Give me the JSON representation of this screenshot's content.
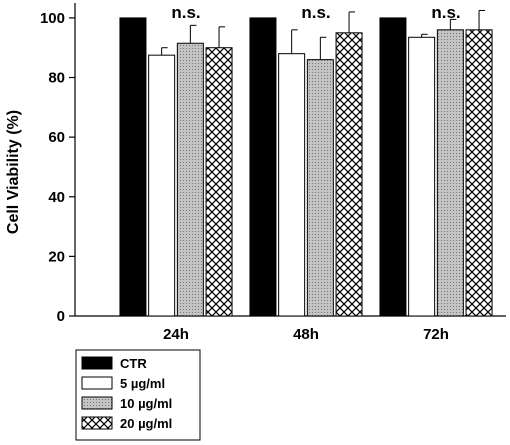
{
  "chart_data": {
    "type": "bar",
    "xlabel": "",
    "ylabel": "Cell Viability (%)",
    "ylim": [
      0,
      105
    ],
    "yticks": [
      0,
      20,
      40,
      60,
      80,
      100
    ],
    "categories": [
      "24h",
      "48h",
      "72h"
    ],
    "series": [
      {
        "name": "CTR",
        "fill": "solid-black",
        "values": [
          100,
          100,
          100
        ],
        "errors": [
          0,
          0,
          0
        ]
      },
      {
        "name": "5 µg/ml",
        "fill": "white",
        "values": [
          87.5,
          88,
          93.5
        ],
        "errors": [
          2.5,
          8,
          1
        ]
      },
      {
        "name": "10 µg/ml",
        "fill": "gray-dotted",
        "values": [
          91.5,
          86,
          96
        ],
        "errors": [
          6,
          7.5,
          3.5
        ]
      },
      {
        "name": "20 µg/ml",
        "fill": "crosshatch",
        "values": [
          90,
          95,
          96
        ],
        "errors": [
          7,
          7,
          6.5
        ]
      }
    ],
    "annotations": [
      "n.s.",
      "n.s.",
      "n.s."
    ],
    "legend_position": "bottom-left",
    "grid": false
  }
}
